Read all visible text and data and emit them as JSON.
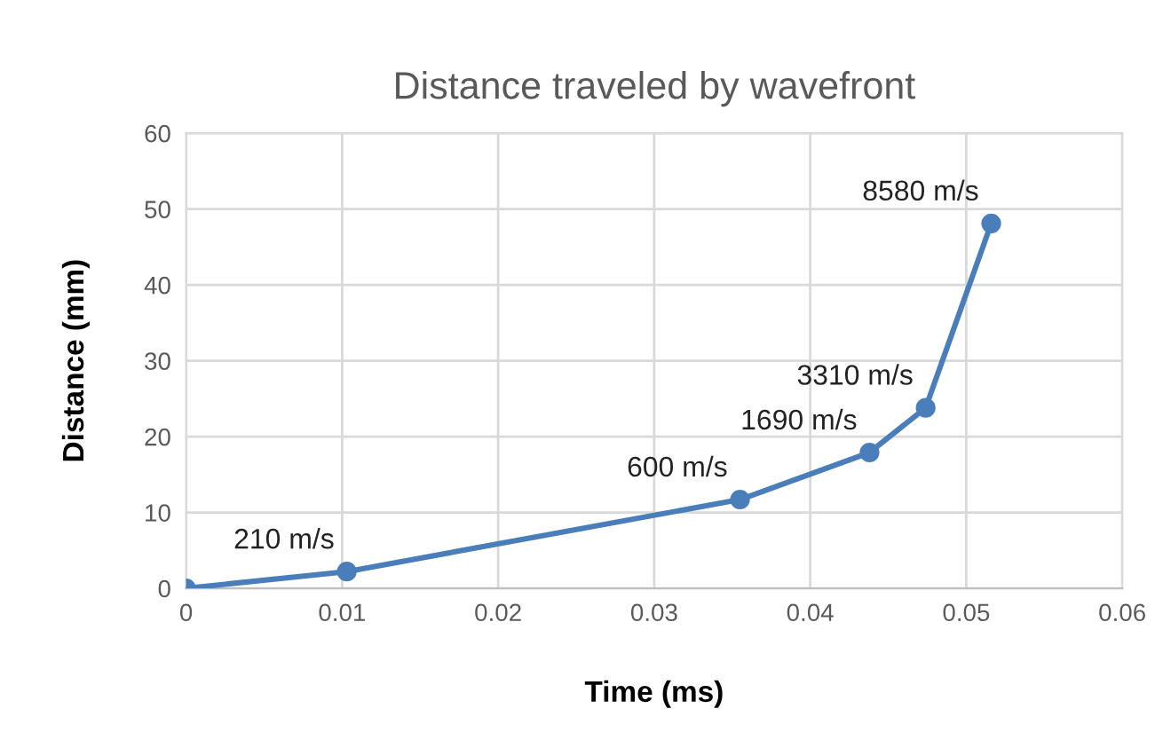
{
  "chart_data": {
    "type": "line",
    "title": "Distance traveled by wavefront",
    "xlabel": "Time (ms)",
    "ylabel": "Distance (mm)",
    "x": [
      0,
      0.0103,
      0.0355,
      0.0438,
      0.0474,
      0.0516
    ],
    "series": [
      {
        "color": "#4a7ebb",
        "values": [
          0,
          2.2,
          11.7,
          17.9,
          23.8,
          48.1
        ]
      }
    ],
    "value_labels": [
      null,
      "210 m/s",
      "600 m/s",
      "1690 m/s",
      "3310 m/s",
      "8580 m/s"
    ],
    "xlim": [
      0,
      0.06
    ],
    "xticks": [
      0,
      0.01,
      0.02,
      0.03,
      0.04,
      0.05,
      0.06
    ],
    "ylim": [
      0,
      60
    ],
    "yticks": [
      0,
      10,
      20,
      30,
      40,
      50,
      60
    ],
    "grid": true,
    "marker": "circle",
    "line_style": "solid",
    "legend": false
  }
}
